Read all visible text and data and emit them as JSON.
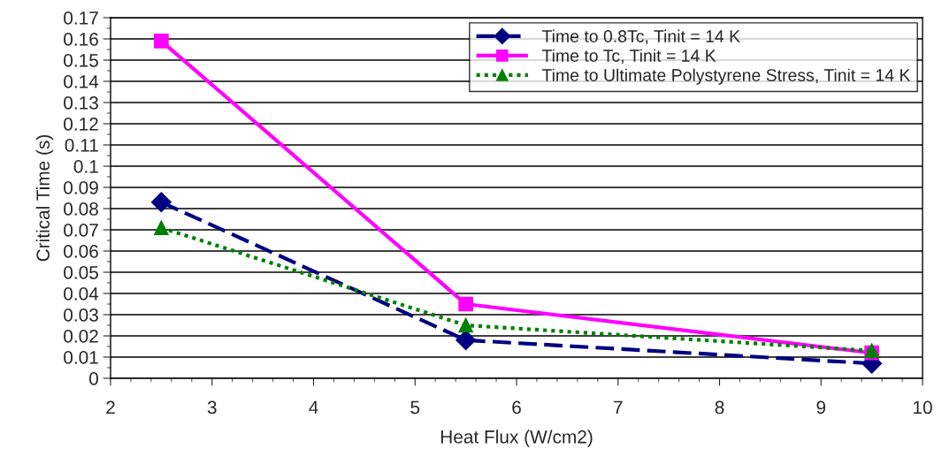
{
  "chart_data": {
    "type": "line",
    "xlabel": "Heat Flux (W/cm2)",
    "ylabel": "Critical Time (s)",
    "x": [
      2.5,
      5.5,
      9.5
    ],
    "series": [
      {
        "name": "Time to 0.8Tc, Tinit = 14 K",
        "color": "#000080",
        "values": [
          0.083,
          0.018,
          0.007
        ],
        "marker": "diamond",
        "line_style": "dashed"
      },
      {
        "name": "Time to Tc, Tinit = 14 K",
        "color": "#ff00ff",
        "values": [
          0.159,
          0.035,
          0.012
        ],
        "marker": "square",
        "line_style": "solid"
      },
      {
        "name": "Time to Ultimate Polystyrene Stress, Tinit = 14 K",
        "color": "#008000",
        "values": [
          0.071,
          0.025,
          0.013
        ],
        "marker": "triangle",
        "line_style": "dotted"
      }
    ],
    "xlim": [
      2,
      10
    ],
    "xticks": [
      2,
      3,
      4,
      5,
      6,
      7,
      8,
      9,
      10
    ],
    "ylim": [
      0,
      0.17
    ],
    "yticks": [
      0,
      0.01,
      0.02,
      0.03,
      0.04,
      0.05,
      0.06,
      0.07,
      0.08,
      0.09,
      0.1,
      0.11,
      0.12,
      0.13,
      0.14,
      0.15,
      0.16,
      0.17
    ],
    "grid": "y",
    "legend": "top right"
  }
}
